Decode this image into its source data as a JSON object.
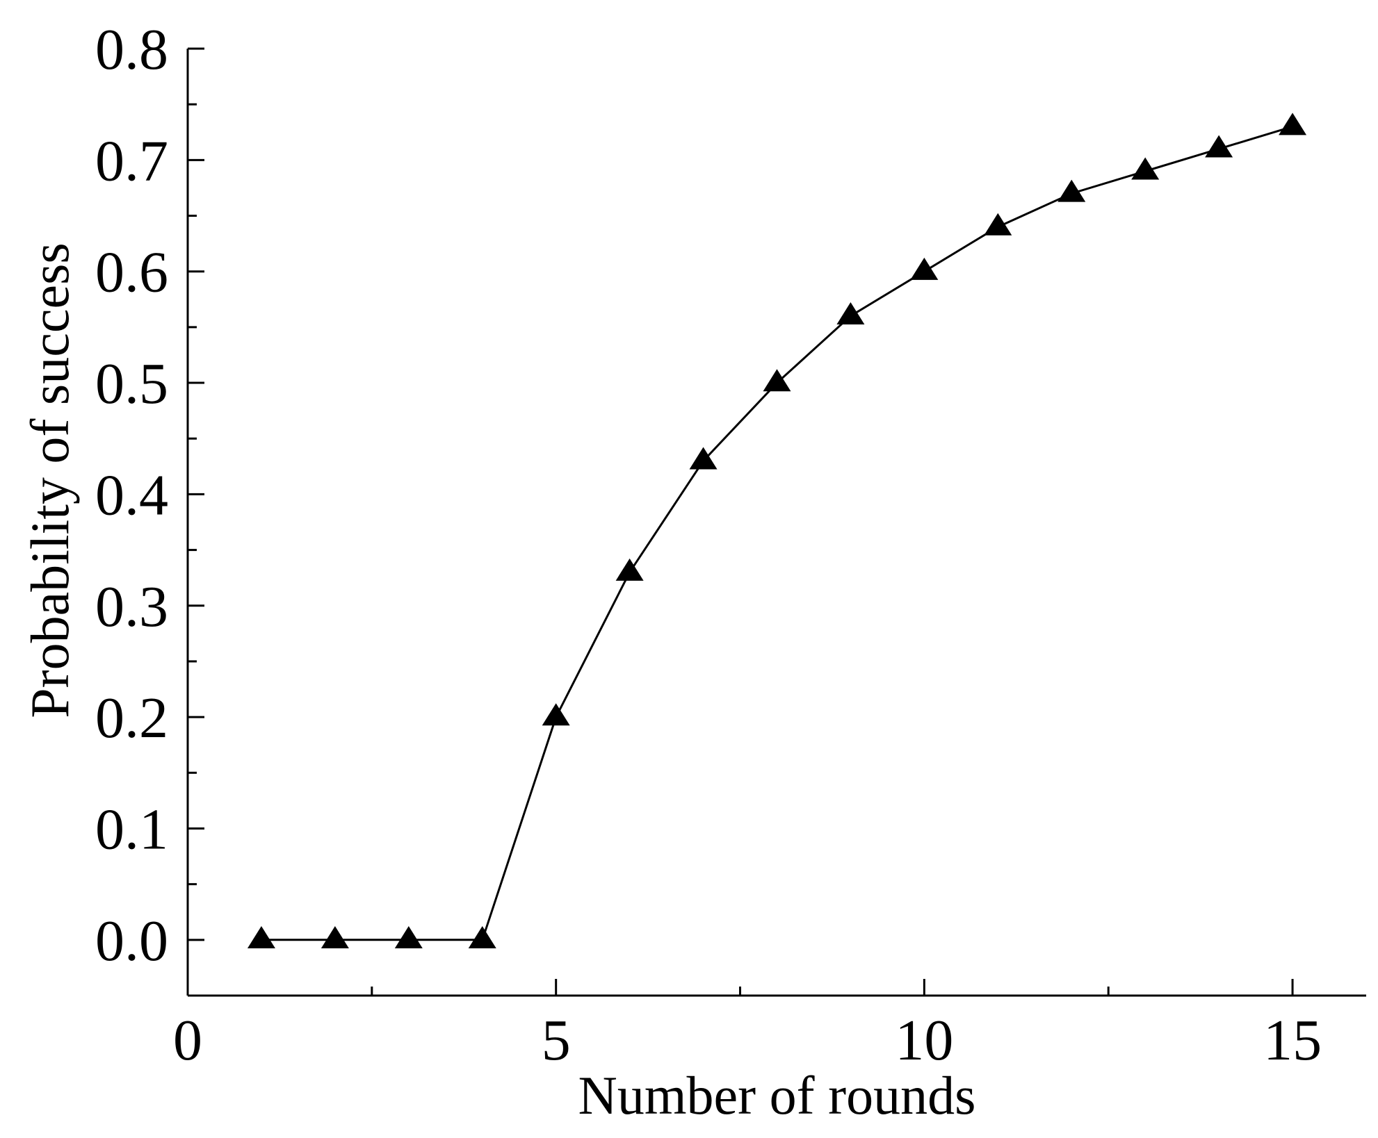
{
  "chart_data": {
    "type": "line",
    "title": "",
    "xlabel": "Number of rounds",
    "ylabel": "Probability of success",
    "xlim": [
      0,
      16
    ],
    "ylim": [
      -0.05,
      0.8
    ],
    "x_ticks": [
      0,
      5,
      10,
      15
    ],
    "x_tick_labels": [
      "0",
      "5",
      "10",
      "15"
    ],
    "x_minor_ticks": [
      2.5,
      7.5,
      12.5
    ],
    "y_ticks": [
      0.0,
      0.1,
      0.2,
      0.3,
      0.4,
      0.5,
      0.6,
      0.7,
      0.8
    ],
    "y_tick_labels": [
      "0.0",
      "0.1",
      "0.2",
      "0.3",
      "0.4",
      "0.5",
      "0.6",
      "0.7",
      "0.8"
    ],
    "grid": false,
    "legend": "none",
    "marker": "triangle",
    "color": "#000000",
    "series": [
      {
        "x": [
          1,
          2,
          3,
          4,
          5,
          6,
          7,
          8,
          9,
          10,
          11,
          12,
          13,
          14,
          15
        ],
        "y": [
          0.0,
          0.0,
          0.0,
          0.0,
          0.2,
          0.33,
          0.43,
          0.5,
          0.56,
          0.6,
          0.64,
          0.67,
          0.69,
          0.71,
          0.73
        ]
      }
    ]
  }
}
